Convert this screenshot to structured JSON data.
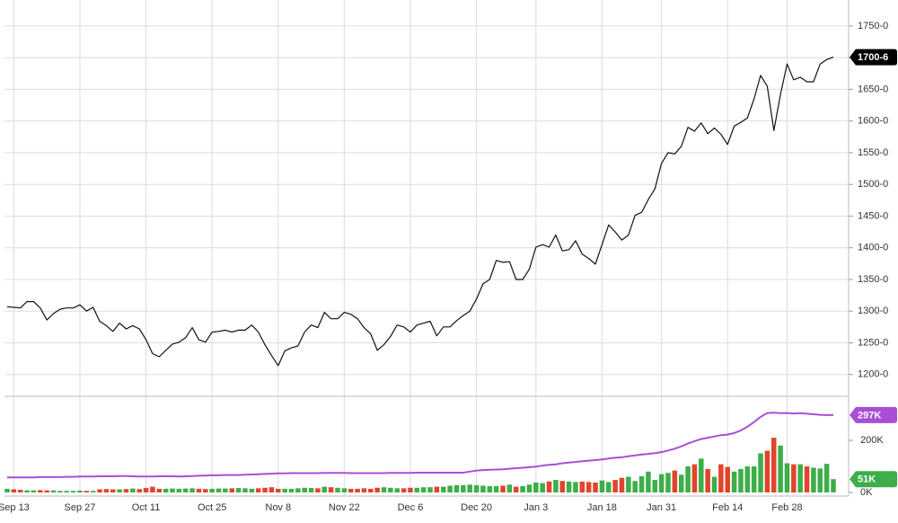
{
  "chart_data": {
    "type": "stock",
    "categories": [
      null,
      "Sep 13",
      null,
      null,
      null,
      null,
      null,
      null,
      null,
      null,
      null,
      "Sep 27",
      null,
      null,
      null,
      null,
      null,
      null,
      null,
      null,
      null,
      "Oct 11",
      null,
      null,
      null,
      null,
      null,
      null,
      null,
      null,
      null,
      "Oct 25",
      null,
      null,
      null,
      null,
      null,
      null,
      null,
      null,
      null,
      "Nov 8",
      null,
      null,
      null,
      null,
      null,
      null,
      null,
      null,
      null,
      "Nov 22",
      null,
      null,
      null,
      null,
      null,
      null,
      null,
      null,
      null,
      "Dec 6",
      null,
      null,
      null,
      null,
      null,
      null,
      null,
      null,
      null,
      "Dec 20",
      null,
      null,
      null,
      null,
      null,
      null,
      null,
      null,
      "Jan 3",
      null,
      null,
      null,
      null,
      null,
      null,
      null,
      null,
      null,
      "Jan 18",
      null,
      null,
      null,
      null,
      null,
      null,
      null,
      null,
      "Jan 31",
      null,
      null,
      null,
      null,
      null,
      null,
      null,
      null,
      null,
      "Feb 14",
      null,
      null,
      null,
      null,
      null,
      null,
      null,
      null,
      "Feb 28",
      null,
      null,
      null,
      null,
      null,
      null,
      null
    ],
    "price": {
      "color": "#111111",
      "values": [
        1307,
        1306,
        1305,
        1315,
        1315,
        1305,
        1286,
        1296,
        1303,
        1305,
        1305,
        1310,
        1300,
        1306,
        1284,
        1277,
        1268,
        1281,
        1272,
        1277,
        1272,
        1255,
        1233,
        1228,
        1238,
        1248,
        1251,
        1258,
        1274,
        1255,
        1251,
        1267,
        1268,
        1270,
        1267,
        1270,
        1270,
        1278,
        1267,
        1247,
        1230,
        1214,
        1237,
        1242,
        1245,
        1267,
        1278,
        1274,
        1298,
        1288,
        1288,
        1298,
        1295,
        1288,
        1274,
        1264,
        1238,
        1247,
        1260,
        1278,
        1275,
        1267,
        1278,
        1281,
        1284,
        1261,
        1275,
        1275,
        1285,
        1293,
        1300,
        1319,
        1343,
        1350,
        1380,
        1377,
        1378,
        1350,
        1350,
        1366,
        1401,
        1405,
        1401,
        1420,
        1395,
        1397,
        1411,
        1390,
        1383,
        1374,
        1405,
        1436,
        1425,
        1412,
        1420,
        1451,
        1456,
        1476,
        1493,
        1533,
        1550,
        1548,
        1560,
        1590,
        1584,
        1597,
        1580,
        1589,
        1579,
        1563,
        1592,
        1598,
        1605,
        1635,
        1672,
        1655,
        1585,
        1642,
        1690,
        1665,
        1669,
        1662,
        1662,
        1690,
        1697,
        1700.75
      ],
      "ylim": [
        1167,
        1791
      ],
      "yticks": [
        {
          "value": 1200,
          "label": "1200-0"
        },
        {
          "value": 1250,
          "label": "1250-0"
        },
        {
          "value": 1300,
          "label": "1300-0"
        },
        {
          "value": 1350,
          "label": "1350-0"
        },
        {
          "value": 1400,
          "label": "1400-0"
        },
        {
          "value": 1450,
          "label": "1450-0"
        },
        {
          "value": 1500,
          "label": "1500-0"
        },
        {
          "value": 1550,
          "label": "1550-0"
        },
        {
          "value": 1600,
          "label": "1600-0"
        },
        {
          "value": 1650,
          "label": "1650-0"
        },
        {
          "value": 1700,
          "label": "1700-0"
        },
        {
          "value": 1750,
          "label": "1750-0"
        }
      ],
      "tag": {
        "value": 1700.75,
        "label": "1700-6",
        "color": "#000000"
      }
    },
    "volume": {
      "up_color": "#3dae49",
      "down_color": "#e0452b",
      "values": [
        14000,
        12000,
        10000,
        8000,
        8000,
        9000,
        8000,
        8000,
        6000,
        6000,
        6000,
        7000,
        6000,
        6000,
        12000,
        13000,
        12000,
        12000,
        13000,
        15000,
        13000,
        17000,
        22000,
        14000,
        14000,
        15000,
        14000,
        15000,
        16000,
        14000,
        13000,
        14000,
        15000,
        15000,
        16000,
        17000,
        16000,
        14000,
        16000,
        18000,
        20000,
        14000,
        14000,
        14000,
        16000,
        18000,
        17000,
        16000,
        22000,
        20000,
        18000,
        16000,
        14000,
        14000,
        16000,
        14000,
        18000,
        20000,
        18000,
        16000,
        16000,
        18000,
        18000,
        20000,
        20000,
        22000,
        22000,
        26000,
        28000,
        28000,
        30000,
        28000,
        26000,
        24000,
        24000,
        26000,
        30000,
        22000,
        24000,
        30000,
        38000,
        36000,
        42000,
        48000,
        44000,
        42000,
        40000,
        42000,
        40000,
        38000,
        46000,
        40000,
        48000,
        56000,
        60000,
        44000,
        62000,
        80000,
        48000,
        70000,
        75000,
        84000,
        68000,
        100000,
        108000,
        130000,
        90000,
        60000,
        108000,
        98000,
        80000,
        90000,
        100000,
        100000,
        150000,
        160000,
        210000,
        180000,
        112000,
        108000,
        108000,
        100000,
        95000,
        92000,
        110000,
        51000
      ],
      "ylim": [
        0,
        369000
      ],
      "yticks": [
        {
          "value": 0,
          "label": "0K"
        },
        {
          "value": 200000,
          "label": "200K"
        }
      ],
      "tag": {
        "value": 51000,
        "label": "51K",
        "color": "#3dae49"
      }
    },
    "volume_ma": {
      "color": "#a94fd6",
      "values": [
        58,
        58,
        58,
        58,
        58,
        59,
        59,
        59,
        59,
        60,
        60,
        61,
        61,
        61,
        62,
        62,
        62,
        63,
        63,
        62,
        61,
        61,
        61,
        62,
        62,
        62,
        61,
        62,
        63,
        64,
        65,
        66,
        66,
        67,
        67,
        67,
        68,
        69,
        70,
        71,
        72,
        73,
        73,
        74,
        74,
        74,
        74,
        74,
        75,
        75,
        75,
        75,
        74,
        74,
        74,
        74,
        74,
        74,
        75,
        75,
        75,
        75,
        76,
        76,
        76,
        76,
        76,
        76,
        76,
        76,
        80,
        84,
        86,
        87,
        88,
        89,
        91,
        93,
        95,
        97,
        99,
        103,
        106,
        108,
        112,
        115,
        117,
        120,
        122,
        124,
        127,
        130,
        133,
        135,
        139,
        142,
        146,
        148,
        151,
        155,
        161,
        168,
        177,
        188,
        197,
        205,
        210,
        215,
        220,
        222,
        228,
        238,
        252,
        270,
        290,
        305,
        306,
        304,
        305,
        303,
        304,
        302,
        300,
        298,
        297,
        297
      ],
      "unit": 1000,
      "tag": {
        "value": 297000,
        "label": "297K",
        "color": "#a94fd6"
      }
    }
  }
}
